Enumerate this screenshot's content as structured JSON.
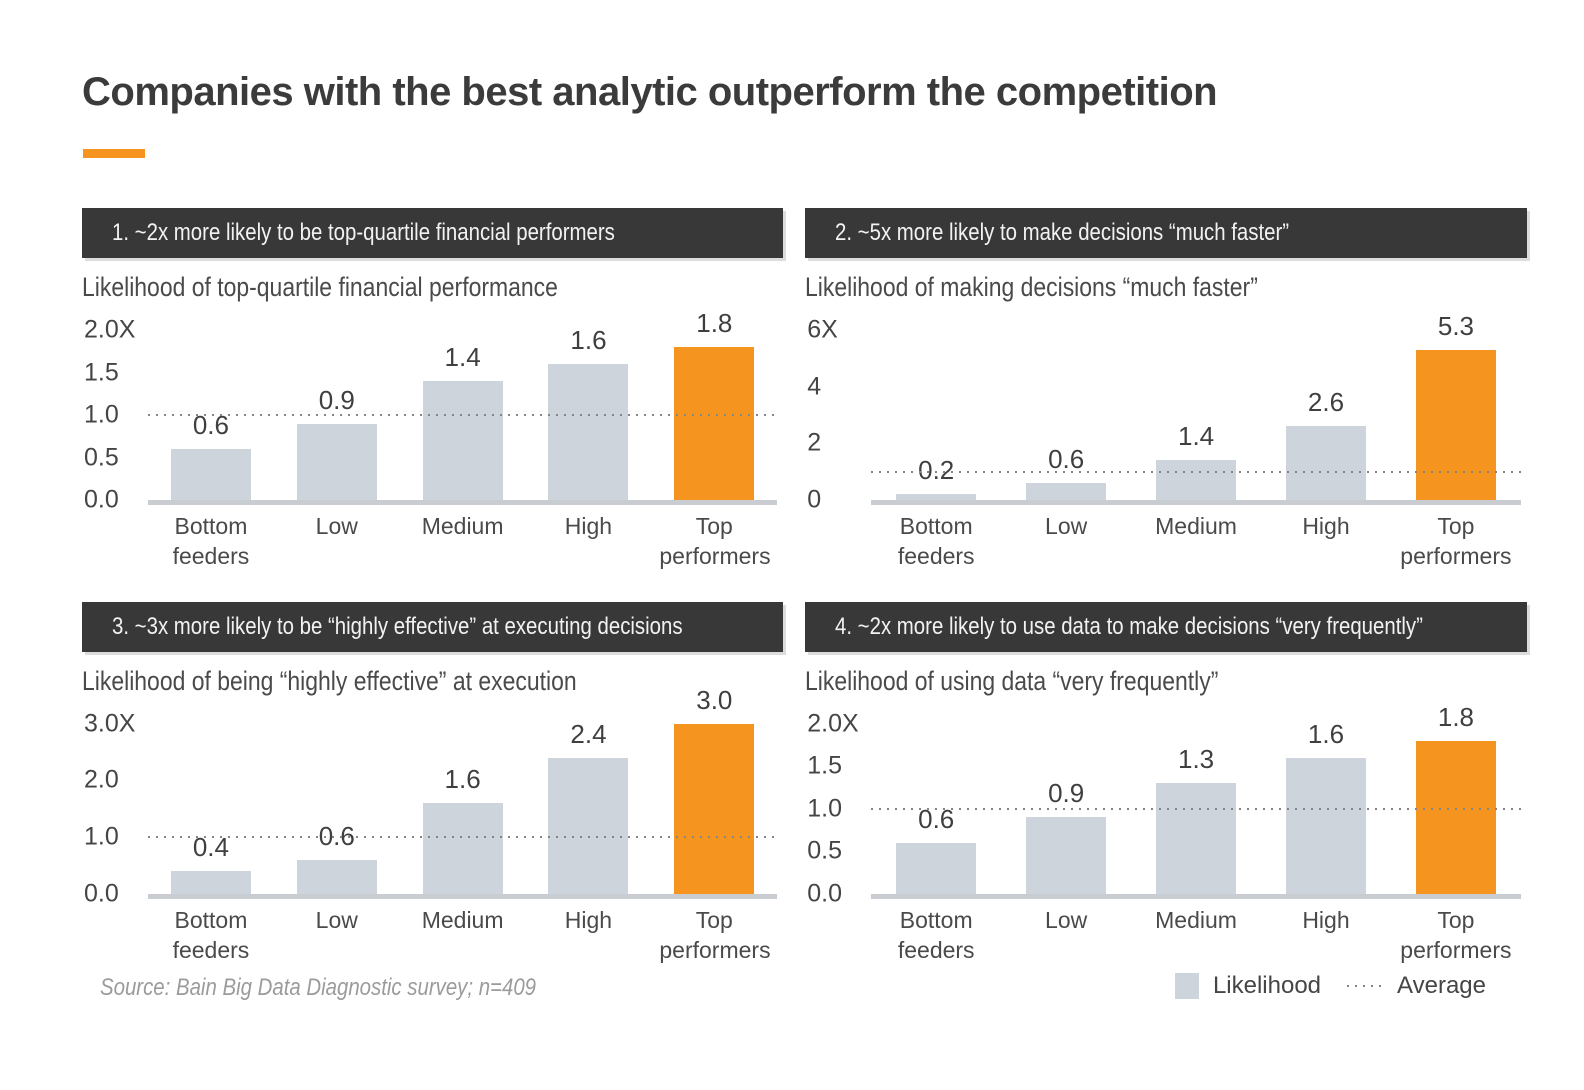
{
  "page_title": "Companies with the best analytic outperform the competition",
  "colors": {
    "accent_orange": "#F5941E",
    "bar_gray": "#CDD4DC",
    "header_dark": "#383838",
    "axis_line_gray": "#C9CDD1"
  },
  "footer": {
    "source": "Source: Bain Big Data Diagnostic survey; n=409",
    "legend": {
      "likelihood_label": "Likelihood",
      "average_label": "Average"
    }
  },
  "chart_data": [
    {
      "type": "bar",
      "header": "1. ~2x more likely to be top-quartile financial performers",
      "title": "Likelihood of top-quartile financial performance",
      "categories": [
        "Bottom feeders",
        "Low",
        "Medium",
        "High",
        "Top performers"
      ],
      "values": [
        0.6,
        0.9,
        1.4,
        1.6,
        1.8
      ],
      "bar_labels": [
        "0.6",
        "0.9",
        "1.4",
        "1.6",
        "1.8"
      ],
      "highlight_index": 4,
      "ylim": [
        0,
        2.0
      ],
      "y_ticks": [
        {
          "label": "2.0X",
          "value": 2.0
        },
        {
          "label": "1.5",
          "value": 1.5
        },
        {
          "label": "1.0",
          "value": 1.0
        },
        {
          "label": "0.5",
          "value": 0.5
        },
        {
          "label": "0.0",
          "value": 0.0
        }
      ],
      "average_line": 1.0
    },
    {
      "type": "bar",
      "header": "2. ~5x more likely to make decisions “much faster”",
      "title": "Likelihood of making decisions “much faster”",
      "categories": [
        "Bottom feeders",
        "Low",
        "Medium",
        "High",
        "Top performers"
      ],
      "values": [
        0.2,
        0.6,
        1.4,
        2.6,
        5.3
      ],
      "bar_labels": [
        "0.2",
        "0.6",
        "1.4",
        "2.6",
        "5.3"
      ],
      "highlight_index": 4,
      "ylim": [
        0,
        6
      ],
      "y_ticks": [
        {
          "label": "6X",
          "value": 6
        },
        {
          "label": "4",
          "value": 4
        },
        {
          "label": "2",
          "value": 2
        },
        {
          "label": "0",
          "value": 0
        }
      ],
      "average_line": 1.0
    },
    {
      "type": "bar",
      "header": "3. ~3x more likely to be “highly effective” at executing decisions",
      "title": "Likelihood of being “highly effective” at execution",
      "categories": [
        "Bottom feeders",
        "Low",
        "Medium",
        "High",
        "Top performers"
      ],
      "values": [
        0.4,
        0.6,
        1.6,
        2.4,
        3.0
      ],
      "bar_labels": [
        "0.4",
        "0.6",
        "1.6",
        "2.4",
        "3.0"
      ],
      "highlight_index": 4,
      "ylim": [
        0,
        3.0
      ],
      "y_ticks": [
        {
          "label": "3.0X",
          "value": 3.0
        },
        {
          "label": "2.0",
          "value": 2.0
        },
        {
          "label": "1.0",
          "value": 1.0
        },
        {
          "label": "0.0",
          "value": 0.0
        }
      ],
      "average_line": 1.0
    },
    {
      "type": "bar",
      "header": "4. ~2x more likely to use data to make decisions “very frequently”",
      "title": "Likelihood of using data “very frequently”",
      "categories": [
        "Bottom feeders",
        "Low",
        "Medium",
        "High",
        "Top performers"
      ],
      "values": [
        0.6,
        0.9,
        1.3,
        1.6,
        1.8
      ],
      "bar_labels": [
        "0.6",
        "0.9",
        "1.3",
        "1.6",
        "1.8"
      ],
      "highlight_index": 4,
      "ylim": [
        0,
        2.0
      ],
      "y_ticks": [
        {
          "label": "2.0X",
          "value": 2.0
        },
        {
          "label": "1.5",
          "value": 1.5
        },
        {
          "label": "1.0",
          "value": 1.0
        },
        {
          "label": "0.5",
          "value": 0.5
        },
        {
          "label": "0.0",
          "value": 0.0
        }
      ],
      "average_line": 1.0
    }
  ]
}
